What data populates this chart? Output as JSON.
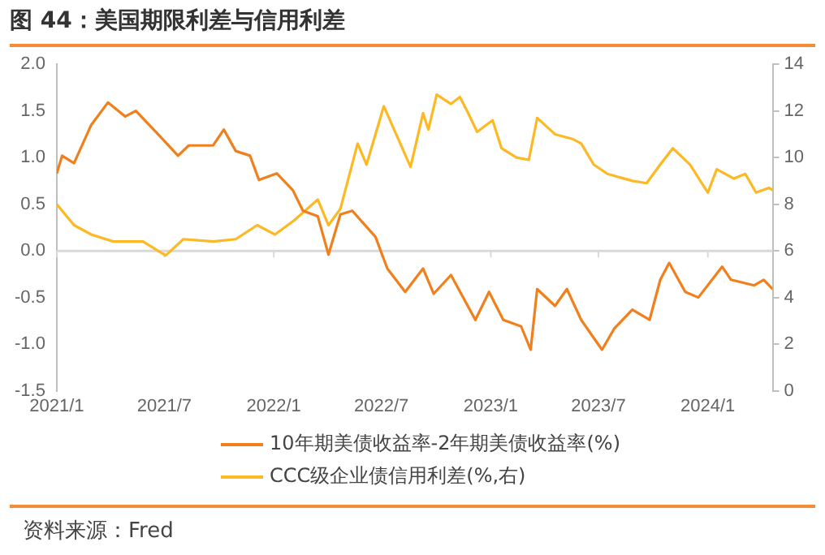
{
  "chart_data": {
    "type": "line",
    "title": "图 44：美国期限利差与信用利差",
    "xlim": [
      "2021-01-01",
      "2024-04-19"
    ],
    "xticks": [
      {
        "value": "2021-01-01",
        "label": "2021/1"
      },
      {
        "value": "2021-07-01",
        "label": "2021/7"
      },
      {
        "value": "2022-01-01",
        "label": "2022/1"
      },
      {
        "value": "2022-07-01",
        "label": "2022/7"
      },
      {
        "value": "2023-01-01",
        "label": "2023/1"
      },
      {
        "value": "2023-07-01",
        "label": "2023/7"
      },
      {
        "value": "2024-01-01",
        "label": "2024/1"
      }
    ],
    "ylim": [
      -1.5,
      2
    ],
    "yticks": [
      -1.5,
      {
        "value": -1,
        "label": "-1.0"
      },
      -0.5,
      {
        "value": 0,
        "label": "0.0"
      },
      0.5,
      {
        "value": 1,
        "label": "1.0"
      },
      1.5,
      {
        "value": 2,
        "label": "2.0"
      }
    ],
    "y2lim": [
      0,
      14
    ],
    "y2ticks": [
      0,
      2,
      4,
      6,
      8,
      10,
      12,
      14
    ],
    "grid": false,
    "legend": "bottom",
    "marker": "none",
    "line_style": "solid",
    "ref_lines": [
      {
        "axis": "y",
        "value": 0,
        "color": "#d9d9d9"
      }
    ],
    "series": [
      {
        "name": "10年期美债收益率-2年期美债收益率(%)",
        "color": "#f07f1c",
        "x": [
          "2021-01-01",
          "2021-01-10",
          "2021-01-30",
          "2021-02-28",
          "2021-03-28",
          "2021-04-26",
          "2021-05-14",
          "2021-06-19",
          "2021-07-24",
          "2021-08-11",
          "2021-09-21",
          "2021-10-09",
          "2021-10-29",
          "2021-11-22",
          "2021-12-07",
          "2022-01-06",
          "2022-02-02",
          "2022-02-19",
          "2022-03-16",
          "2022-04-03",
          "2022-04-23",
          "2022-05-13",
          "2022-05-31",
          "2022-06-21",
          "2022-07-11",
          "2022-08-10",
          "2022-09-09",
          "2022-09-27",
          "2022-10-26",
          "2022-12-06",
          "2022-12-29",
          "2023-01-22",
          "2023-02-21",
          "2023-03-09",
          "2023-03-20",
          "2023-04-19",
          "2023-05-09",
          "2023-06-02",
          "2023-07-07",
          "2023-07-28",
          "2023-08-27",
          "2023-09-25",
          "2023-10-13",
          "2023-10-28",
          "2023-11-24",
          "2023-12-16",
          "2024-01-25",
          "2024-02-09",
          "2024-03-19",
          "2024-04-04",
          "2024-04-19"
        ],
        "values": [
          0.83,
          1.02,
          0.94,
          1.35,
          1.59,
          1.44,
          1.5,
          1.26,
          1.02,
          1.13,
          1.13,
          1.3,
          1.07,
          1.02,
          0.76,
          0.83,
          0.65,
          0.43,
          0.37,
          -0.04,
          0.39,
          0.43,
          0.3,
          0.15,
          -0.19,
          -0.44,
          -0.19,
          -0.46,
          -0.26,
          -0.74,
          -0.44,
          -0.74,
          -0.81,
          -1.06,
          -0.41,
          -0.59,
          -0.41,
          -0.74,
          -1.06,
          -0.83,
          -0.63,
          -0.74,
          -0.31,
          -0.13,
          -0.44,
          -0.5,
          -0.17,
          -0.31,
          -0.37,
          -0.31,
          -0.41
        ]
      },
      {
        "name": "CCC级企业债信用利差(%,右)",
        "color": "#fdb924",
        "axis": "y2",
        "x": [
          "2021-01-01",
          "2021-01-30",
          "2021-02-28",
          "2021-04-06",
          "2021-05-26",
          "2021-07-03",
          "2021-08-02",
          "2021-09-21",
          "2021-10-29",
          "2021-12-04",
          "2022-01-03",
          "2022-02-04",
          "2022-03-16",
          "2022-04-03",
          "2022-04-23",
          "2022-05-22",
          "2022-06-06",
          "2022-07-05",
          "2022-08-19",
          "2022-09-09",
          "2022-09-18",
          "2022-10-02",
          "2022-10-26",
          "2022-11-10",
          "2022-11-24",
          "2022-12-09",
          "2023-01-04",
          "2023-01-19",
          "2023-02-13",
          "2023-03-06",
          "2023-03-20",
          "2023-04-19",
          "2023-05-18",
          "2023-06-02",
          "2023-06-23",
          "2023-07-16",
          "2023-08-27",
          "2023-09-20",
          "2023-10-13",
          "2023-11-03",
          "2023-12-02",
          "2024-01-01",
          "2024-01-16",
          "2024-02-14",
          "2024-03-04",
          "2024-03-22",
          "2024-04-13",
          "2024-04-19"
        ],
        "values": [
          8.0,
          7.1,
          6.7,
          6.4,
          6.4,
          5.8,
          6.5,
          6.4,
          6.5,
          7.1,
          6.7,
          7.3,
          8.2,
          7.1,
          7.8,
          10.6,
          9.7,
          12.2,
          9.6,
          11.9,
          11.2,
          12.7,
          12.3,
          12.6,
          11.9,
          11.1,
          11.6,
          10.4,
          10.0,
          9.9,
          11.7,
          11.0,
          10.8,
          10.6,
          9.7,
          9.3,
          9.0,
          8.9,
          9.7,
          10.4,
          9.7,
          8.5,
          9.5,
          9.1,
          9.3,
          8.5,
          8.7,
          8.6
        ]
      }
    ],
    "annotations": [
      "资料来源：Fred"
    ]
  }
}
